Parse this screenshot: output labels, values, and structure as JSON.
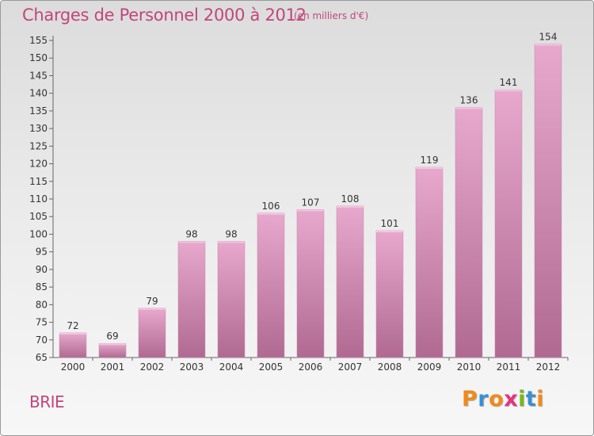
{
  "chart_data": {
    "type": "bar",
    "title": "Charges de Personnel 2000 à 2012",
    "subtitle": "(en milliers d'€)",
    "categories": [
      "2000",
      "2001",
      "2002",
      "2003",
      "2004",
      "2005",
      "2006",
      "2007",
      "2008",
      "2009",
      "2010",
      "2011",
      "2012"
    ],
    "values": [
      72,
      69,
      79,
      98,
      98,
      106,
      107,
      108,
      101,
      119,
      136,
      141,
      154
    ],
    "ylim": [
      65,
      155
    ],
    "yticks": [
      65,
      70,
      75,
      80,
      85,
      90,
      95,
      100,
      105,
      110,
      115,
      120,
      125,
      130,
      135,
      140,
      145,
      150,
      155
    ],
    "grid": false,
    "legend": "none",
    "bar_color": "#d98db5"
  },
  "footer": {
    "place": "BRIE",
    "logo": [
      "P",
      "r",
      "o",
      "x",
      "i",
      "t",
      "i"
    ],
    "logo_colors": [
      "#f08a1c",
      "#3a8fd0",
      "#f08a1c",
      "#e5337d",
      "#7ab51d",
      "#3a8fd0",
      "#f08a1c"
    ]
  }
}
